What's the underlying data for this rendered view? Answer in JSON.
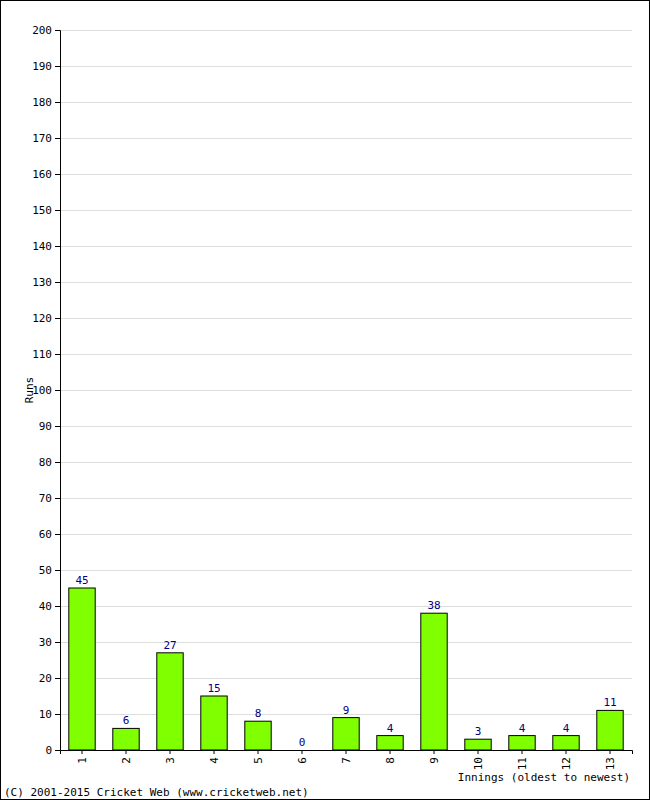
{
  "chart_data": {
    "type": "bar",
    "x_label": "Innings (oldest to newest)",
    "y_label": "Runs",
    "annotation": "(C) 2001-2015 Cricket Web (www.cricketweb.net)",
    "categories": [
      "1",
      "2",
      "3",
      "4",
      "5",
      "6",
      "7",
      "8",
      "9",
      "10",
      "11",
      "12",
      "13"
    ],
    "values": [
      45,
      6,
      27,
      15,
      8,
      0,
      9,
      4,
      38,
      3,
      4,
      4,
      11
    ],
    "color": "#80ff00",
    "ylim": [
      0,
      200
    ],
    "yticks": [
      0,
      10,
      20,
      30,
      40,
      50,
      60,
      70,
      80,
      90,
      100,
      110,
      120,
      130,
      140,
      150,
      160,
      170,
      180,
      190,
      200
    ],
    "grid": true,
    "data_labels": true
  }
}
